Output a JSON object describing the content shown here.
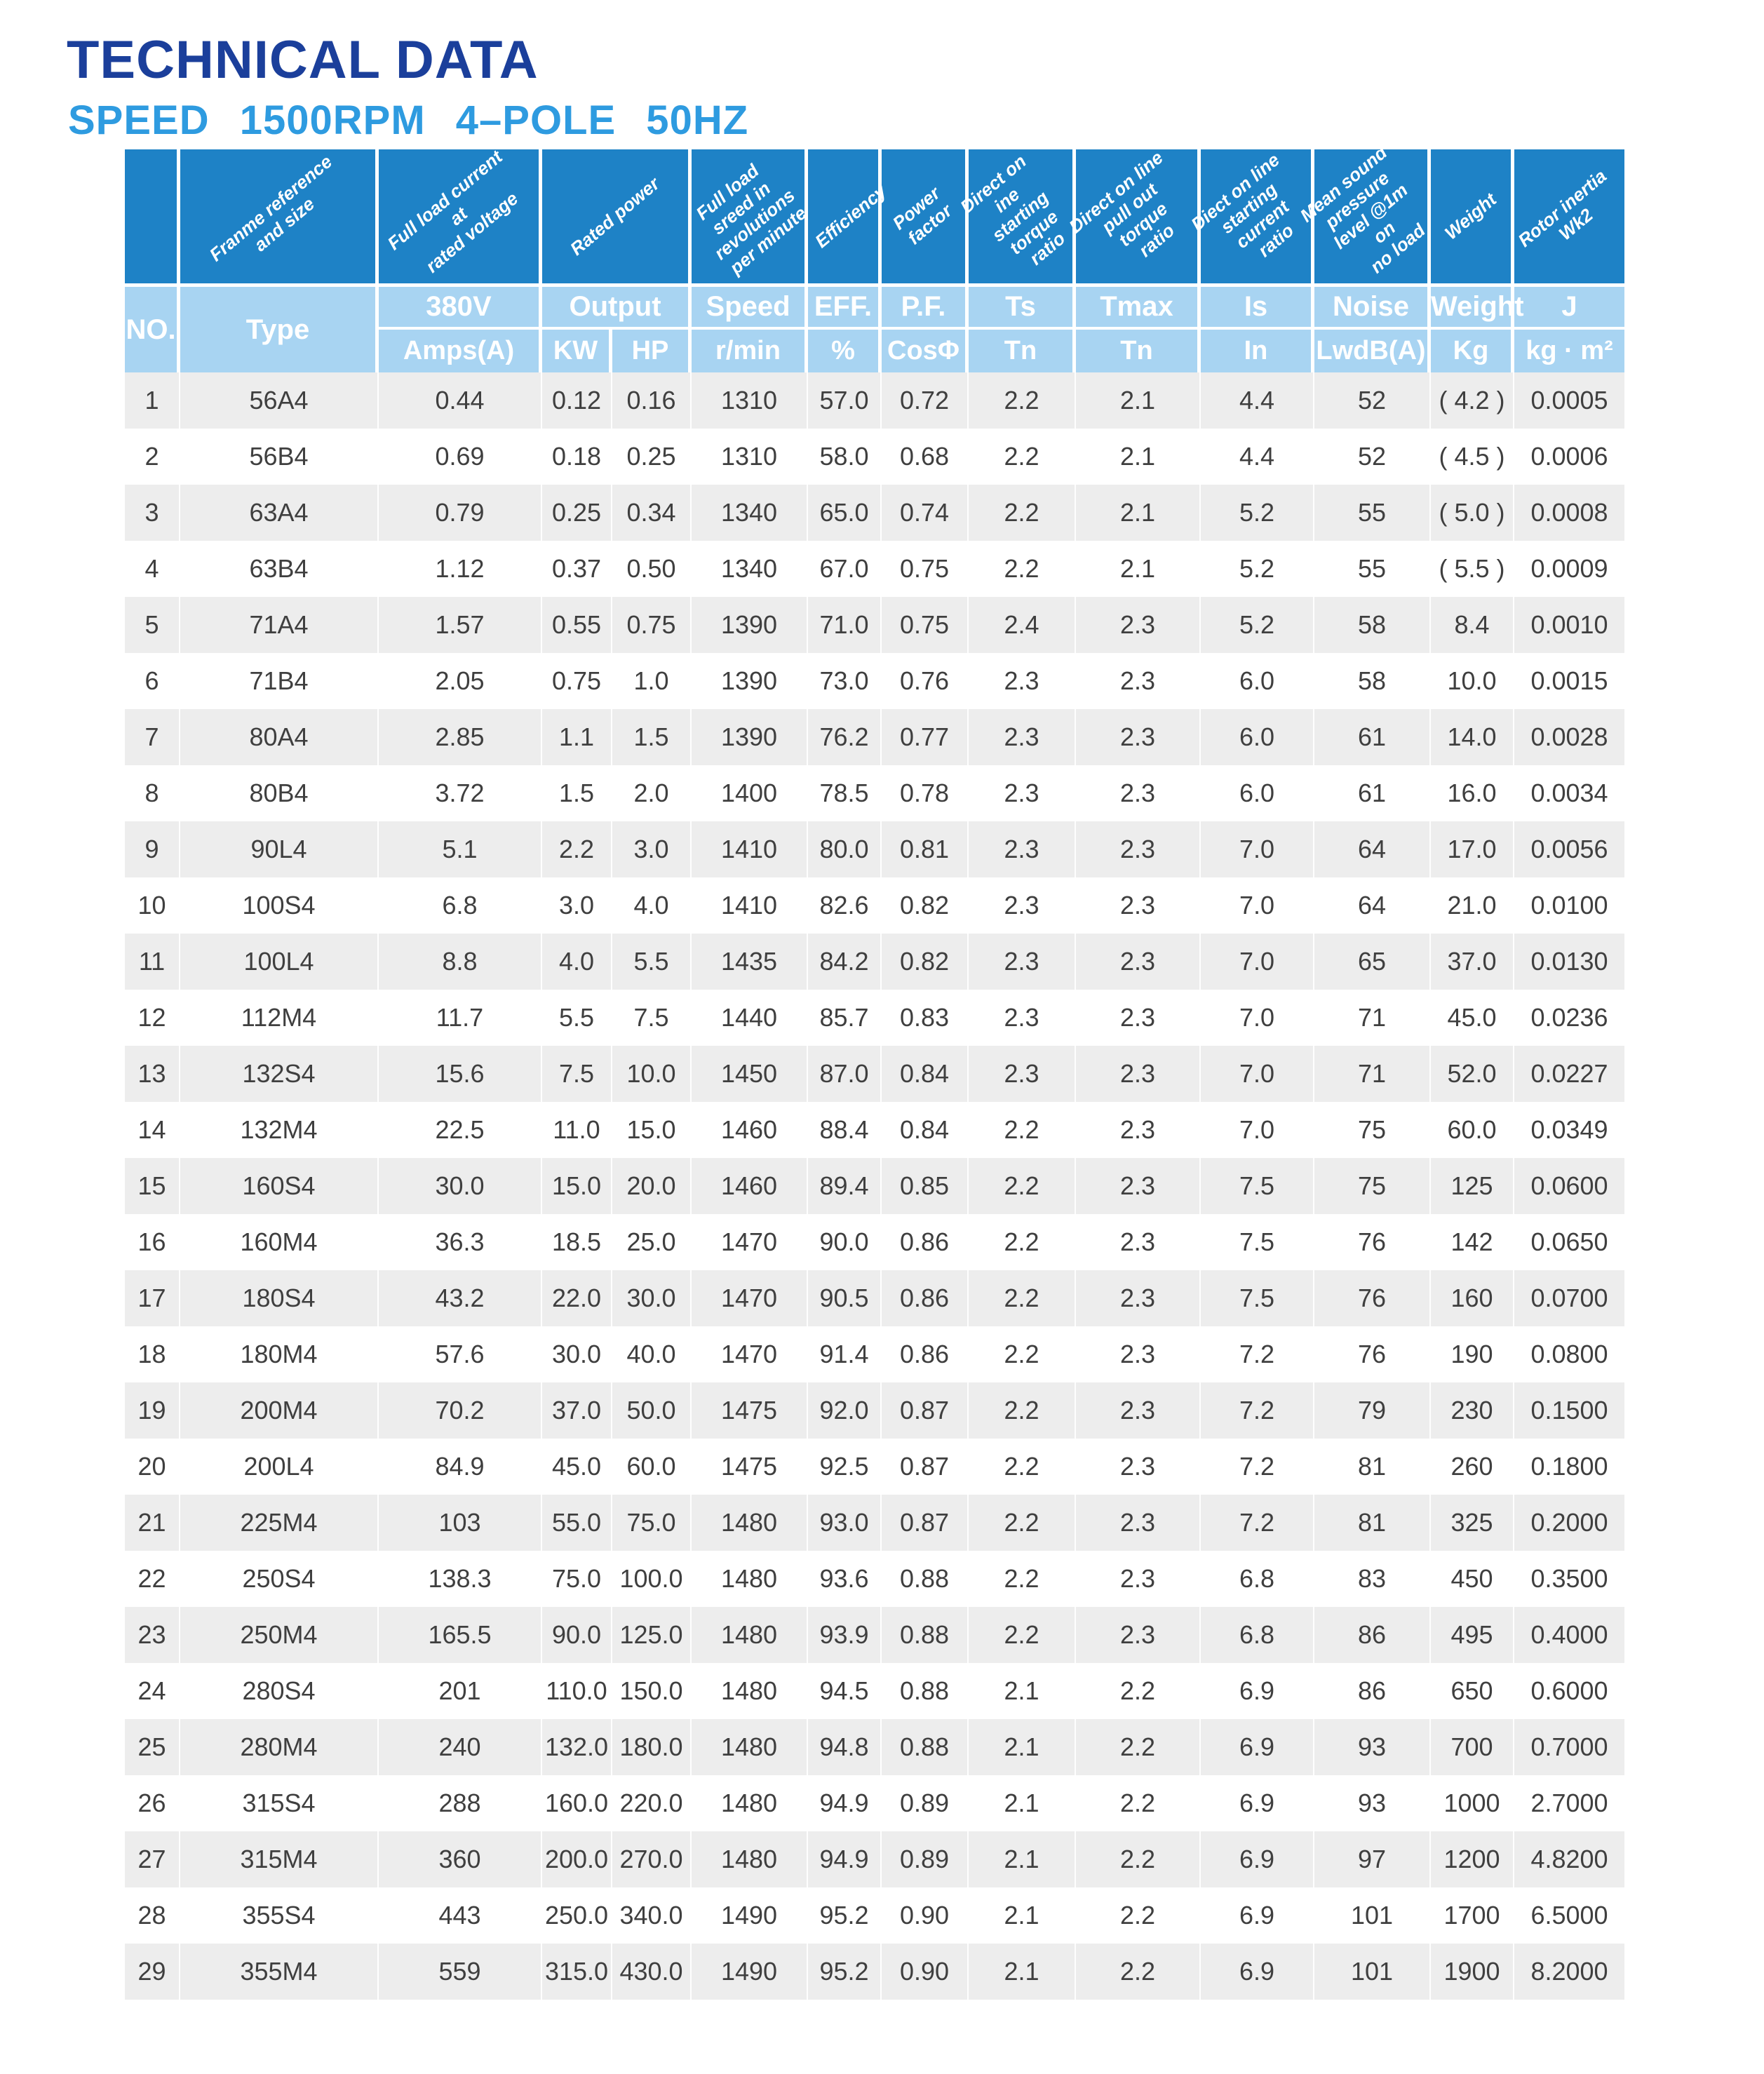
{
  "page": {
    "title": "TECHNICAL DATA",
    "subtitle": "SPEED 1500RPM 4–POLE 50HZ"
  },
  "colors": {
    "title_navy": "#1b3f9b",
    "subtitle_blue": "#2e9be0",
    "header_blue": "#1e82c6",
    "subheader_blue": "#a8d4f2",
    "row_gray": "#ededed",
    "row_white": "#ffffff",
    "data_text": "#3f3f3f"
  },
  "table": {
    "diagonal_headers": {
      "type": "Franme reference\nand size",
      "amps": "Full load current at\nrated voltage",
      "power": "Rated power",
      "speed": "Full load sreed in\nrevolutions\nper minute",
      "eff": "Efficiency",
      "pf": "Power factor",
      "ts": "Direct on ine\nstarting torque\nratio",
      "tmax": "Direct on line\npull out torque\nratio",
      "is": "Diect on line\nstarting current\nratio",
      "noise": "Mean sound\npressure\nlevel @1m on\nno load",
      "weight": "Weight",
      "j": "Rotor inertia Wk2"
    },
    "group_headers": {
      "no": "NO.",
      "type": "Type",
      "v380": "380V",
      "output": "Output",
      "speed": "Speed",
      "eff": "EFF.",
      "pf": "P.F.",
      "ts": "Ts",
      "tmax": "Tmax",
      "is": "Is",
      "noise": "Noise",
      "weight": "Weight",
      "j": "J"
    },
    "unit_headers": {
      "amps": "Amps(A)",
      "kw": "KW",
      "hp": "HP",
      "rmin": "r/min",
      "pct": "%",
      "cos": "CosΦ",
      "tn1": "Tn",
      "tn2": "Tn",
      "in": "In",
      "lwdb": "LwdB(A)",
      "kg": "Kg",
      "kgm2": "kg · m²"
    },
    "rows": [
      [
        "1",
        "56A4",
        "0.44",
        "0.12",
        "0.16",
        "1310",
        "57.0",
        "0.72",
        "2.2",
        "2.1",
        "4.4",
        "52",
        "( 4.2 )",
        "0.0005"
      ],
      [
        "2",
        "56B4",
        "0.69",
        "0.18",
        "0.25",
        "1310",
        "58.0",
        "0.68",
        "2.2",
        "2.1",
        "4.4",
        "52",
        "( 4.5 )",
        "0.0006"
      ],
      [
        "3",
        "63A4",
        "0.79",
        "0.25",
        "0.34",
        "1340",
        "65.0",
        "0.74",
        "2.2",
        "2.1",
        "5.2",
        "55",
        "( 5.0 )",
        "0.0008"
      ],
      [
        "4",
        "63B4",
        "1.12",
        "0.37",
        "0.50",
        "1340",
        "67.0",
        "0.75",
        "2.2",
        "2.1",
        "5.2",
        "55",
        "( 5.5 )",
        "0.0009"
      ],
      [
        "5",
        "71A4",
        "1.57",
        "0.55",
        "0.75",
        "1390",
        "71.0",
        "0.75",
        "2.4",
        "2.3",
        "5.2",
        "58",
        "8.4",
        "0.0010"
      ],
      [
        "6",
        "71B4",
        "2.05",
        "0.75",
        "1.0",
        "1390",
        "73.0",
        "0.76",
        "2.3",
        "2.3",
        "6.0",
        "58",
        "10.0",
        "0.0015"
      ],
      [
        "7",
        "80A4",
        "2.85",
        "1.1",
        "1.5",
        "1390",
        "76.2",
        "0.77",
        "2.3",
        "2.3",
        "6.0",
        "61",
        "14.0",
        "0.0028"
      ],
      [
        "8",
        "80B4",
        "3.72",
        "1.5",
        "2.0",
        "1400",
        "78.5",
        "0.78",
        "2.3",
        "2.3",
        "6.0",
        "61",
        "16.0",
        "0.0034"
      ],
      [
        "9",
        "90L4",
        "5.1",
        "2.2",
        "3.0",
        "1410",
        "80.0",
        "0.81",
        "2.3",
        "2.3",
        "7.0",
        "64",
        "17.0",
        "0.0056"
      ],
      [
        "10",
        "100S4",
        "6.8",
        "3.0",
        "4.0",
        "1410",
        "82.6",
        "0.82",
        "2.3",
        "2.3",
        "7.0",
        "64",
        "21.0",
        "0.0100"
      ],
      [
        "11",
        "100L4",
        "8.8",
        "4.0",
        "5.5",
        "1435",
        "84.2",
        "0.82",
        "2.3",
        "2.3",
        "7.0",
        "65",
        "37.0",
        "0.0130"
      ],
      [
        "12",
        "112M4",
        "11.7",
        "5.5",
        "7.5",
        "1440",
        "85.7",
        "0.83",
        "2.3",
        "2.3",
        "7.0",
        "71",
        "45.0",
        "0.0236"
      ],
      [
        "13",
        "132S4",
        "15.6",
        "7.5",
        "10.0",
        "1450",
        "87.0",
        "0.84",
        "2.3",
        "2.3",
        "7.0",
        "71",
        "52.0",
        "0.0227"
      ],
      [
        "14",
        "132M4",
        "22.5",
        "11.0",
        "15.0",
        "1460",
        "88.4",
        "0.84",
        "2.2",
        "2.3",
        "7.0",
        "75",
        "60.0",
        "0.0349"
      ],
      [
        "15",
        "160S4",
        "30.0",
        "15.0",
        "20.0",
        "1460",
        "89.4",
        "0.85",
        "2.2",
        "2.3",
        "7.5",
        "75",
        "125",
        "0.0600"
      ],
      [
        "16",
        "160M4",
        "36.3",
        "18.5",
        "25.0",
        "1470",
        "90.0",
        "0.86",
        "2.2",
        "2.3",
        "7.5",
        "76",
        "142",
        "0.0650"
      ],
      [
        "17",
        "180S4",
        "43.2",
        "22.0",
        "30.0",
        "1470",
        "90.5",
        "0.86",
        "2.2",
        "2.3",
        "7.5",
        "76",
        "160",
        "0.0700"
      ],
      [
        "18",
        "180M4",
        "57.6",
        "30.0",
        "40.0",
        "1470",
        "91.4",
        "0.86",
        "2.2",
        "2.3",
        "7.2",
        "76",
        "190",
        "0.0800"
      ],
      [
        "19",
        "200M4",
        "70.2",
        "37.0",
        "50.0",
        "1475",
        "92.0",
        "0.87",
        "2.2",
        "2.3",
        "7.2",
        "79",
        "230",
        "0.1500"
      ],
      [
        "20",
        "200L4",
        "84.9",
        "45.0",
        "60.0",
        "1475",
        "92.5",
        "0.87",
        "2.2",
        "2.3",
        "7.2",
        "81",
        "260",
        "0.1800"
      ],
      [
        "21",
        "225M4",
        "103",
        "55.0",
        "75.0",
        "1480",
        "93.0",
        "0.87",
        "2.2",
        "2.3",
        "7.2",
        "81",
        "325",
        "0.2000"
      ],
      [
        "22",
        "250S4",
        "138.3",
        "75.0",
        "100.0",
        "1480",
        "93.6",
        "0.88",
        "2.2",
        "2.3",
        "6.8",
        "83",
        "450",
        "0.3500"
      ],
      [
        "23",
        "250M4",
        "165.5",
        "90.0",
        "125.0",
        "1480",
        "93.9",
        "0.88",
        "2.2",
        "2.3",
        "6.8",
        "86",
        "495",
        "0.4000"
      ],
      [
        "24",
        "280S4",
        "201",
        "110.0",
        "150.0",
        "1480",
        "94.5",
        "0.88",
        "2.1",
        "2.2",
        "6.9",
        "86",
        "650",
        "0.6000"
      ],
      [
        "25",
        "280M4",
        "240",
        "132.0",
        "180.0",
        "1480",
        "94.8",
        "0.88",
        "2.1",
        "2.2",
        "6.9",
        "93",
        "700",
        "0.7000"
      ],
      [
        "26",
        "315S4",
        "288",
        "160.0",
        "220.0",
        "1480",
        "94.9",
        "0.89",
        "2.1",
        "2.2",
        "6.9",
        "93",
        "1000",
        "2.7000"
      ],
      [
        "27",
        "315M4",
        "360",
        "200.0",
        "270.0",
        "1480",
        "94.9",
        "0.89",
        "2.1",
        "2.2",
        "6.9",
        "97",
        "1200",
        "4.8200"
      ],
      [
        "28",
        "355S4",
        "443",
        "250.0",
        "340.0",
        "1490",
        "95.2",
        "0.90",
        "2.1",
        "2.2",
        "6.9",
        "101",
        "1700",
        "6.5000"
      ],
      [
        "29",
        "355M4",
        "559",
        "315.0",
        "430.0",
        "1490",
        "95.2",
        "0.90",
        "2.1",
        "2.2",
        "6.9",
        "101",
        "1900",
        "8.2000"
      ]
    ]
  }
}
